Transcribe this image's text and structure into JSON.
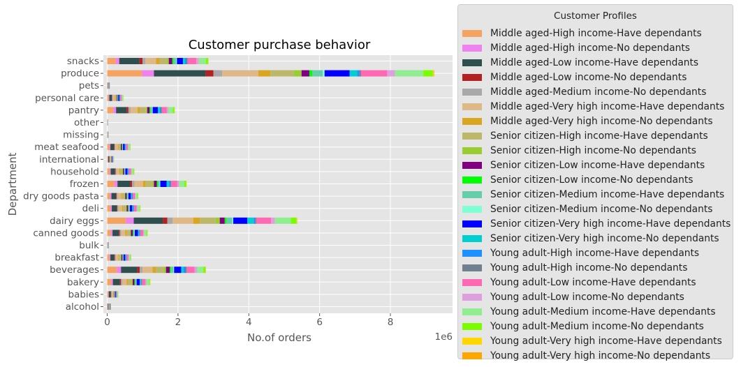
{
  "chart_data": {
    "type": "bar",
    "orientation": "horizontal",
    "stacked": true,
    "title": "Customer purchase behavior",
    "xlabel": "No.of orders",
    "ylabel": "Department",
    "x_offset_text": "1e6",
    "xlim": [
      0,
      9.7
    ],
    "x_ticks": [
      "0",
      "2",
      "4",
      "6",
      "8"
    ],
    "grid": true,
    "legend_title": "Customer Profiles",
    "legend_position": "outside-right",
    "categories": [
      "alcohol",
      "babies",
      "bakery",
      "beverages",
      "breakfast",
      "bulk",
      "canned goods",
      "dairy eggs",
      "deli",
      "dry goods pasta",
      "frozen",
      "household",
      "international",
      "meat seafood",
      "missing",
      "other",
      "pantry",
      "personal care",
      "pets",
      "produce",
      "snacks"
    ],
    "series": [
      {
        "name": "Middle aged-High income-Have dependants",
        "color": "#f4a460",
        "values": [
          0.01,
          0.03,
          0.11,
          0.27,
          0.06,
          0.004,
          0.1,
          0.53,
          0.09,
          0.08,
          0.2,
          0.07,
          0.02,
          0.06,
          0.004,
          0.002,
          0.17,
          0.04,
          0.007,
          0.98,
          0.24
        ]
      },
      {
        "name": "Middle aged-High income-No dependants",
        "color": "#ee82ee",
        "values": [
          0.005,
          0.015,
          0.05,
          0.12,
          0.03,
          0.002,
          0.05,
          0.22,
          0.04,
          0.04,
          0.09,
          0.03,
          0.01,
          0.03,
          0.002,
          0.001,
          0.08,
          0.02,
          0.004,
          0.34,
          0.1
        ]
      },
      {
        "name": "Middle aged-Low income-Have dependants",
        "color": "#2f4f4f",
        "values": [
          0.02,
          0.06,
          0.2,
          0.46,
          0.11,
          0.008,
          0.18,
          0.82,
          0.14,
          0.13,
          0.36,
          0.12,
          0.03,
          0.1,
          0.007,
          0.003,
          0.3,
          0.07,
          0.012,
          1.46,
          0.57
        ]
      },
      {
        "name": "Middle aged-Low income-No dependants",
        "color": "#b22222",
        "values": [
          0.004,
          0.01,
          0.03,
          0.07,
          0.02,
          0.001,
          0.03,
          0.13,
          0.02,
          0.02,
          0.05,
          0.02,
          0.005,
          0.02,
          0.001,
          0.001,
          0.05,
          0.01,
          0.002,
          0.22,
          0.09
        ]
      },
      {
        "name": "Middle aged-Medium income-No dependants",
        "color": "#a9a9a9",
        "values": [
          0.005,
          0.01,
          0.04,
          0.08,
          0.02,
          0.001,
          0.04,
          0.15,
          0.03,
          0.03,
          0.07,
          0.02,
          0.006,
          0.02,
          0.001,
          0.001,
          0.06,
          0.015,
          0.003,
          0.25,
          0.08
        ]
      },
      {
        "name": "Middle aged-Very high income-Have dependants",
        "color": "#deb887",
        "values": [
          0.01,
          0.03,
          0.12,
          0.28,
          0.07,
          0.005,
          0.11,
          0.58,
          0.1,
          0.09,
          0.24,
          0.08,
          0.02,
          0.07,
          0.004,
          0.002,
          0.2,
          0.05,
          0.008,
          1.02,
          0.3
        ]
      },
      {
        "name": "Middle aged-Very high income-No dependants",
        "color": "#daa520",
        "values": [
          0.004,
          0.01,
          0.04,
          0.09,
          0.02,
          0.002,
          0.04,
          0.19,
          0.03,
          0.03,
          0.08,
          0.025,
          0.006,
          0.02,
          0.001,
          0.001,
          0.07,
          0.015,
          0.003,
          0.34,
          0.1
        ]
      },
      {
        "name": "Senior citizen-High income-Have dependants",
        "color": "#bdb76b",
        "values": [
          0.008,
          0.025,
          0.1,
          0.22,
          0.05,
          0.004,
          0.09,
          0.44,
          0.08,
          0.07,
          0.18,
          0.06,
          0.015,
          0.05,
          0.003,
          0.002,
          0.16,
          0.04,
          0.006,
          0.66,
          0.2
        ]
      },
      {
        "name": "Senior citizen-High income-No dependants",
        "color": "#9acd32",
        "values": [
          0.003,
          0.008,
          0.03,
          0.07,
          0.02,
          0.001,
          0.03,
          0.12,
          0.02,
          0.02,
          0.05,
          0.02,
          0.004,
          0.015,
          0.001,
          0.001,
          0.04,
          0.01,
          0.002,
          0.22,
          0.06
        ]
      },
      {
        "name": "Senior citizen-Low income-Have dependants",
        "color": "#800080",
        "values": [
          0.005,
          0.015,
          0.05,
          0.11,
          0.03,
          0.002,
          0.05,
          0.14,
          0.04,
          0.04,
          0.08,
          0.03,
          0.008,
          0.03,
          0.002,
          0.001,
          0.07,
          0.02,
          0.003,
          0.22,
          0.1
        ]
      },
      {
        "name": "Senior citizen-Low income-No dependants",
        "color": "#00ff00",
        "values": [
          0.002,
          0.005,
          0.02,
          0.04,
          0.01,
          0.001,
          0.02,
          0.05,
          0.015,
          0.015,
          0.03,
          0.01,
          0.003,
          0.01,
          0.001,
          0.0005,
          0.03,
          0.007,
          0.001,
          0.08,
          0.04
        ]
      },
      {
        "name": "Senior citizen-Medium income-Have dependants",
        "color": "#66cdaa",
        "values": [
          0.003,
          0.008,
          0.03,
          0.06,
          0.015,
          0.001,
          0.03,
          0.16,
          0.025,
          0.025,
          0.05,
          0.02,
          0.005,
          0.015,
          0.001,
          0.001,
          0.04,
          0.01,
          0.002,
          0.3,
          0.07
        ]
      },
      {
        "name": "Senior citizen-Medium income-No dependants",
        "color": "#7fffd4",
        "values": [
          0.001,
          0.003,
          0.01,
          0.02,
          0.005,
          0.0005,
          0.01,
          0.03,
          0.008,
          0.008,
          0.02,
          0.006,
          0.002,
          0.005,
          0.0005,
          0.0003,
          0.015,
          0.004,
          0.001,
          0.05,
          0.02
        ]
      },
      {
        "name": "Senior citizen-Very high income-Have dependants",
        "color": "#0000ff",
        "values": [
          0.008,
          0.02,
          0.09,
          0.2,
          0.05,
          0.004,
          0.09,
          0.4,
          0.07,
          0.07,
          0.18,
          0.06,
          0.015,
          0.05,
          0.003,
          0.002,
          0.15,
          0.035,
          0.006,
          0.71,
          0.17
        ]
      },
      {
        "name": "Senior citizen-Very high income-No dependants",
        "color": "#00ced1",
        "values": [
          0.003,
          0.008,
          0.03,
          0.07,
          0.02,
          0.001,
          0.03,
          0.18,
          0.025,
          0.025,
          0.06,
          0.02,
          0.005,
          0.02,
          0.001,
          0.001,
          0.05,
          0.012,
          0.002,
          0.21,
          0.06
        ]
      },
      {
        "name": "Young adult-High income-Have dependants",
        "color": "#1e90ff",
        "values": [
          0.002,
          0.006,
          0.02,
          0.05,
          0.012,
          0.001,
          0.02,
          0.04,
          0.018,
          0.018,
          0.04,
          0.014,
          0.004,
          0.012,
          0.001,
          0.0005,
          0.035,
          0.008,
          0.0015,
          0.06,
          0.04
        ]
      },
      {
        "name": "Young adult-High income-No dependants",
        "color": "#708090",
        "values": [
          0.001,
          0.004,
          0.015,
          0.035,
          0.008,
          0.0008,
          0.015,
          0.03,
          0.012,
          0.012,
          0.03,
          0.01,
          0.003,
          0.008,
          0.0008,
          0.0004,
          0.025,
          0.006,
          0.001,
          0.05,
          0.03
        ]
      },
      {
        "name": "Young adult-Low income-Have dependants",
        "color": "#ff69b4",
        "values": [
          0.006,
          0.018,
          0.09,
          0.22,
          0.05,
          0.003,
          0.08,
          0.42,
          0.07,
          0.06,
          0.17,
          0.06,
          0.014,
          0.05,
          0.003,
          0.002,
          0.14,
          0.035,
          0.006,
          0.74,
          0.25
        ]
      },
      {
        "name": "Young adult-Low income-No dependants",
        "color": "#dda0dd",
        "values": [
          0.002,
          0.006,
          0.03,
          0.07,
          0.015,
          0.001,
          0.025,
          0.11,
          0.02,
          0.02,
          0.05,
          0.02,
          0.004,
          0.015,
          0.001,
          0.001,
          0.04,
          0.01,
          0.002,
          0.22,
          0.07
        ]
      },
      {
        "name": "Young adult-Medium income-Have dependants",
        "color": "#90ee90",
        "values": [
          0.006,
          0.018,
          0.08,
          0.18,
          0.045,
          0.003,
          0.07,
          0.45,
          0.06,
          0.05,
          0.15,
          0.05,
          0.012,
          0.04,
          0.003,
          0.002,
          0.13,
          0.03,
          0.005,
          0.8,
          0.2
        ]
      },
      {
        "name": "Young adult-Medium income-No dependants",
        "color": "#7cfc00",
        "values": [
          0.002,
          0.006,
          0.025,
          0.06,
          0.015,
          0.001,
          0.025,
          0.16,
          0.02,
          0.02,
          0.05,
          0.02,
          0.004,
          0.014,
          0.001,
          0.001,
          0.045,
          0.01,
          0.002,
          0.27,
          0.06
        ]
      },
      {
        "name": "Young adult-Very high income-Have dependants",
        "color": "#ffd700",
        "values": [
          0.0005,
          0.001,
          0.004,
          0.008,
          0.002,
          0.0002,
          0.004,
          0.01,
          0.003,
          0.003,
          0.006,
          0.002,
          0.0008,
          0.002,
          0.0002,
          0.0001,
          0.005,
          0.0015,
          0.0003,
          0.02,
          0.006
        ]
      },
      {
        "name": "Young adult-Very high income-No dependants",
        "color": "#ffa500",
        "values": [
          0.0003,
          0.0008,
          0.003,
          0.006,
          0.0015,
          0.0001,
          0.003,
          0.008,
          0.002,
          0.002,
          0.005,
          0.0015,
          0.0006,
          0.0015,
          0.0001,
          0.0001,
          0.004,
          0.001,
          0.0002,
          0.015,
          0.004
        ]
      }
    ]
  }
}
